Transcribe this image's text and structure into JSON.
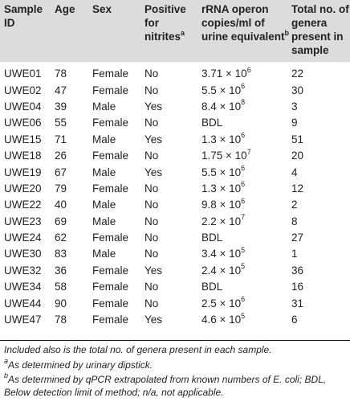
{
  "header": {
    "sample_id": "Sample ID",
    "age": "Age",
    "sex": "Sex",
    "positive_for_nitrites": "Positive for nitrites",
    "positive_for_nitrites_sup": "a",
    "rrna": "rRNA operon copies/ml of urine equivalent",
    "rrna_sup": "b",
    "total_genera": "Total no. of genera present in sample"
  },
  "rows": [
    {
      "id": "UWE01",
      "age": "78",
      "sex": "Female",
      "nitrites": "No",
      "rrna": "3.71 × 10",
      "exp": "6",
      "genera": "22"
    },
    {
      "id": "UWE02",
      "age": "47",
      "sex": "Female",
      "nitrites": "No",
      "rrna": "5.5 × 10",
      "exp": "6",
      "genera": "30"
    },
    {
      "id": "UWE04",
      "age": "39",
      "sex": "Male",
      "nitrites": "Yes",
      "rrna": "8.4 × 10",
      "exp": "8",
      "genera": "3"
    },
    {
      "id": "UWE06",
      "age": "55",
      "sex": "Female",
      "nitrites": "No",
      "rrna": "BDL",
      "exp": "",
      "genera": "9"
    },
    {
      "id": "UWE15",
      "age": "71",
      "sex": "Male",
      "nitrites": "Yes",
      "rrna": "1.3 × 10",
      "exp": "6",
      "genera": "51"
    },
    {
      "id": "UWE18",
      "age": "26",
      "sex": "Female",
      "nitrites": "No",
      "rrna": "1.75 × 10",
      "exp": "7",
      "genera": "20"
    },
    {
      "id": "UWE19",
      "age": "67",
      "sex": "Male",
      "nitrites": "Yes",
      "rrna": "5.5 × 10",
      "exp": "6",
      "genera": "4"
    },
    {
      "id": "UWE20",
      "age": "79",
      "sex": "Female",
      "nitrites": "No",
      "rrna": "1.3 × 10",
      "exp": "6",
      "genera": "12"
    },
    {
      "id": "UWE22",
      "age": "40",
      "sex": "Male",
      "nitrites": "No",
      "rrna": "9.8 × 10",
      "exp": "6",
      "genera": "2"
    },
    {
      "id": "UWE23",
      "age": "69",
      "sex": "Male",
      "nitrites": "No",
      "rrna": "2.2 × 10",
      "exp": "7",
      "genera": "8"
    },
    {
      "id": "UWE24",
      "age": "62",
      "sex": "Female",
      "nitrites": "No",
      "rrna": "BDL",
      "exp": "",
      "genera": "27"
    },
    {
      "id": "UWE30",
      "age": "83",
      "sex": "Male",
      "nitrites": "No",
      "rrna": "3.4 × 10",
      "exp": "5",
      "genera": "1"
    },
    {
      "id": "UWE32",
      "age": "36",
      "sex": "Female",
      "nitrites": "Yes",
      "rrna": "2.4 × 10",
      "exp": "5",
      "genera": "36"
    },
    {
      "id": "UWE34",
      "age": "58",
      "sex": "Female",
      "nitrites": "No",
      "rrna": "BDL",
      "exp": "",
      "genera": "16"
    },
    {
      "id": "UWE44",
      "age": "90",
      "sex": "Female",
      "nitrites": "No",
      "rrna": "2.5 × 10",
      "exp": "6",
      "genera": "31"
    },
    {
      "id": "UWE47",
      "age": "78",
      "sex": "Female",
      "nitrites": "Yes",
      "rrna": "4.6 × 10",
      "exp": "5",
      "genera": "6"
    }
  ],
  "footnotes": {
    "general": "Included also is the total no. of genera present in each sample.",
    "a_marker": "a",
    "a_text": "As determined by urinary dipstick.",
    "b_marker": "b",
    "b_text": "As determined by qPCR extrapolated from known numbers of E. coli; BDL, Below detection limit of method; n/a, not applicable."
  }
}
